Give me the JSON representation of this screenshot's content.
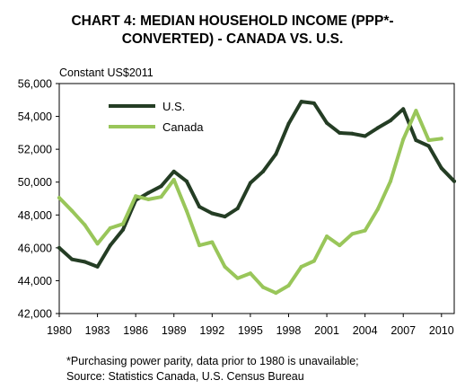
{
  "chart_data": {
    "type": "line",
    "title_line1": "CHART 4: MEDIAN HOUSEHOLD INCOME (PPP*-",
    "title_line2": "CONVERTED) - CANADA VS. U.S.",
    "ylabel": "Constant US$2011",
    "ylim": [
      42000,
      56000
    ],
    "xlim": [
      1980,
      2011
    ],
    "yticks": [
      {
        "value": 42000,
        "label": "42,000"
      },
      {
        "value": 44000,
        "label": "44,000"
      },
      {
        "value": 46000,
        "label": "46,000"
      },
      {
        "value": 48000,
        "label": "48,000"
      },
      {
        "value": 50000,
        "label": "50,000"
      },
      {
        "value": 52000,
        "label": "52,000"
      },
      {
        "value": 54000,
        "label": "54,000"
      },
      {
        "value": 56000,
        "label": "56,000"
      }
    ],
    "xticks": [
      {
        "value": 1980,
        "label": "1980"
      },
      {
        "value": 1983,
        "label": "1983"
      },
      {
        "value": 1986,
        "label": "1986"
      },
      {
        "value": 1989,
        "label": "1989"
      },
      {
        "value": 1992,
        "label": "1992"
      },
      {
        "value": 1995,
        "label": "1995"
      },
      {
        "value": 1998,
        "label": "1998"
      },
      {
        "value": 2001,
        "label": "2001"
      },
      {
        "value": 2004,
        "label": "2004"
      },
      {
        "value": 2007,
        "label": "2007"
      },
      {
        "value": 2010,
        "label": "2010"
      }
    ],
    "grid": false,
    "legend_position": "top-left",
    "series": [
      {
        "name": "U.S.",
        "color": "#243d24",
        "x": [
          1980,
          1981,
          1982,
          1983,
          1984,
          1985,
          1986,
          1987,
          1988,
          1989,
          1990,
          1991,
          1992,
          1993,
          1994,
          1995,
          1996,
          1997,
          1998,
          1999,
          2000,
          2001,
          2002,
          2003,
          2004,
          2005,
          2006,
          2007,
          2008,
          2009,
          2010,
          2011
        ],
        "values": [
          46000,
          45300,
          45150,
          44850,
          46150,
          47100,
          48900,
          49350,
          49750,
          50650,
          50050,
          48500,
          48100,
          47900,
          48400,
          49950,
          50650,
          51700,
          53550,
          54900,
          54800,
          53600,
          53000,
          52950,
          52800,
          53300,
          53750,
          54450,
          52550,
          52200,
          50850,
          50050
        ]
      },
      {
        "name": "Canada",
        "color": "#99c65a",
        "x": [
          1980,
          1981,
          1982,
          1983,
          1984,
          1985,
          1986,
          1987,
          1988,
          1989,
          1990,
          1991,
          1992,
          1993,
          1994,
          1995,
          1996,
          1997,
          1998,
          1999,
          2000,
          2001,
          2002,
          2003,
          2004,
          2005,
          2006,
          2007,
          2008,
          2009,
          2010
        ],
        "values": [
          49050,
          48250,
          47400,
          46250,
          47200,
          47450,
          49150,
          48950,
          49100,
          50150,
          48250,
          46150,
          46350,
          44850,
          44150,
          44450,
          43600,
          43250,
          43700,
          44850,
          45200,
          46700,
          46150,
          46850,
          47050,
          48350,
          50050,
          52600,
          54350,
          52550,
          52650
        ]
      }
    ],
    "footnote_line1": "*Purchasing power parity, data prior to 1980 is unavailable;",
    "footnote_line2": "Source: Statistics Canada, U.S. Census Bureau"
  }
}
